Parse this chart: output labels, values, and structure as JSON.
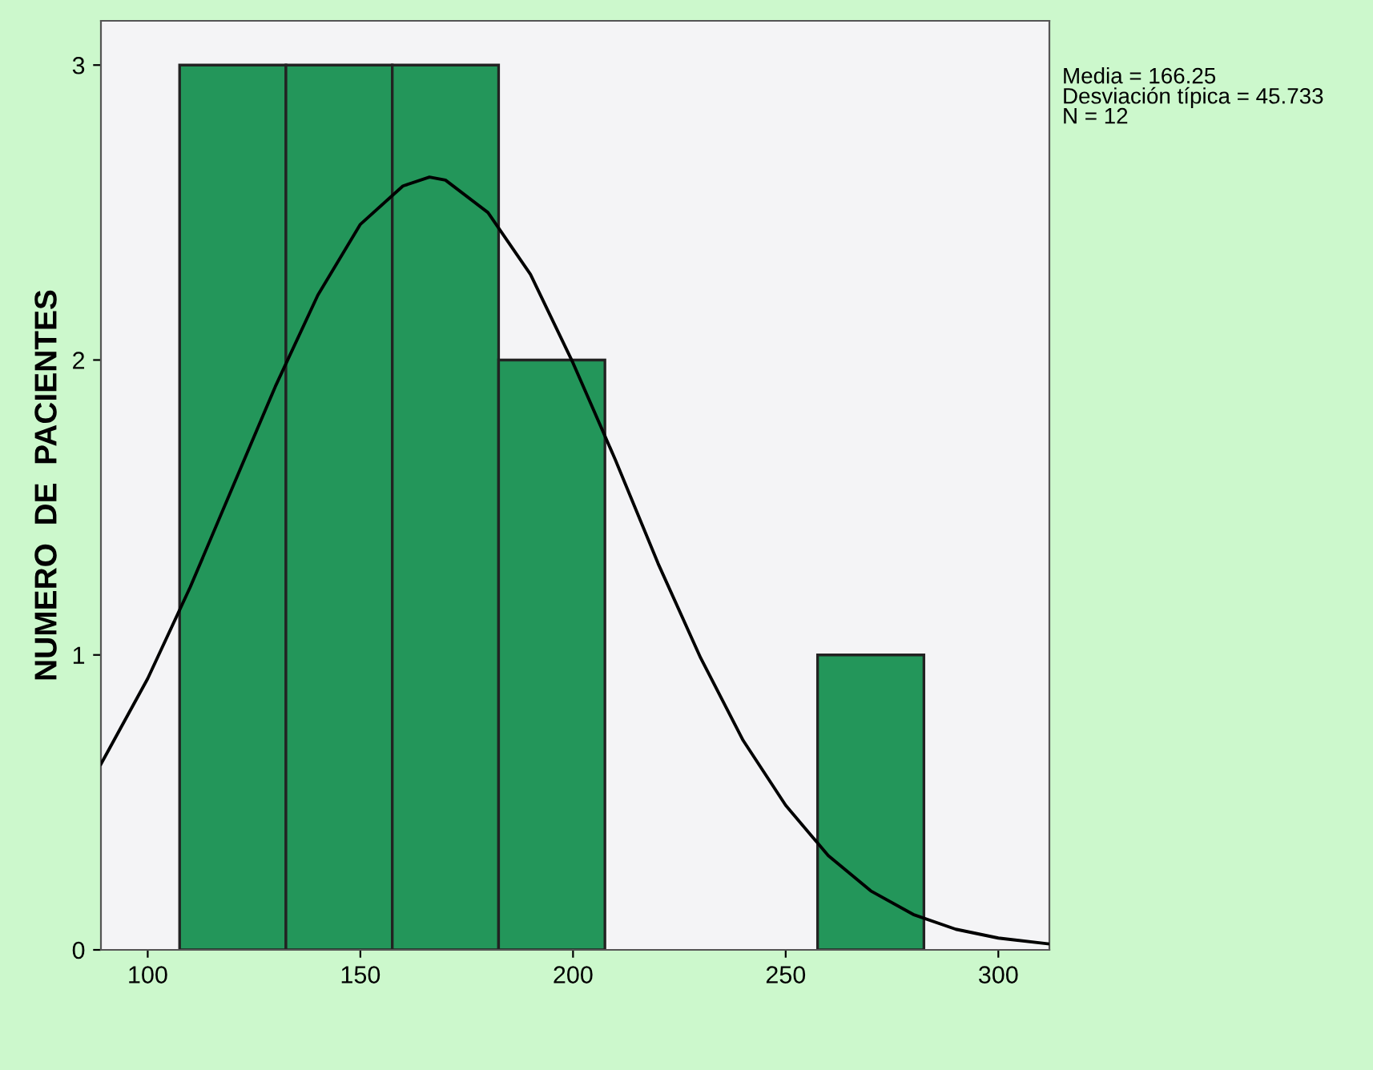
{
  "chart_data": {
    "type": "histogram",
    "ylabel": "NUMERO  DE  PACIENTES",
    "bins": [
      107.5,
      132.5,
      157.5,
      182.5,
      207.5,
      232.5,
      257.5,
      282.5
    ],
    "values": [
      3,
      3,
      3,
      2,
      0,
      0,
      1
    ],
    "color": "#23965a",
    "series": [
      {
        "type": "line",
        "color": "#000000",
        "x": [
          89,
          100,
          110,
          120,
          130,
          140,
          150,
          160,
          166.25,
          170,
          180,
          190,
          200,
          210,
          220,
          230,
          240,
          250,
          260,
          270,
          280,
          290,
          300,
          312
        ],
        "values": [
          0.63,
          0.92,
          1.23,
          1.57,
          1.91,
          2.22,
          2.46,
          2.59,
          2.62,
          2.61,
          2.5,
          2.29,
          1.99,
          1.66,
          1.31,
          0.99,
          0.71,
          0.49,
          0.32,
          0.2,
          0.12,
          0.07,
          0.04,
          0.02
        ]
      }
    ],
    "xlim": [
      89,
      312
    ],
    "ylim": [
      0,
      3.15
    ],
    "xticks": [
      100,
      150,
      200,
      250,
      300
    ],
    "yticks": [
      0,
      1,
      2,
      3
    ],
    "grid": false,
    "annotations": [
      "Media = 166.25\nDesviación típica = 45.733\nN = 12"
    ]
  }
}
